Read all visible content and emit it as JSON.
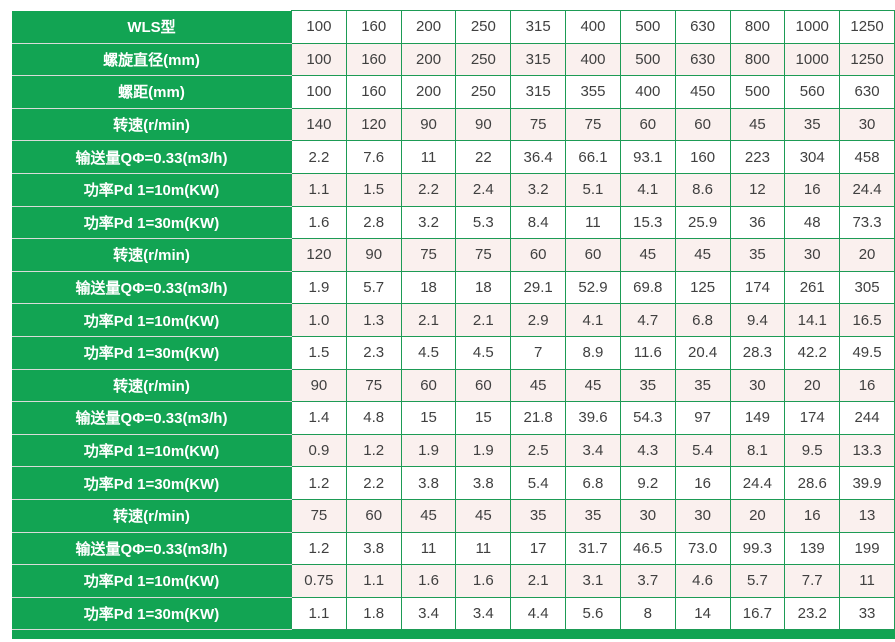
{
  "colors": {
    "label_green": "#12a453",
    "border_green": "#1d9b55",
    "stripe_pink": "#faf0ee",
    "data_text": "#404040",
    "label_text": "#ffffff"
  },
  "table": {
    "column_count": 12,
    "rows": [
      {
        "label": "WLS型",
        "values": [
          "100",
          "160",
          "200",
          "250",
          "315",
          "400",
          "500",
          "630",
          "800",
          "1000",
          "1250"
        ]
      },
      {
        "label": "螺旋直径(mm)",
        "values": [
          "100",
          "160",
          "200",
          "250",
          "315",
          "400",
          "500",
          "630",
          "800",
          "1000",
          "1250"
        ]
      },
      {
        "label": "螺距(mm)",
        "values": [
          "100",
          "160",
          "200",
          "250",
          "315",
          "355",
          "400",
          "450",
          "500",
          "560",
          "630"
        ]
      },
      {
        "label": "转速(r/min)",
        "values": [
          "140",
          "120",
          "90",
          "90",
          "75",
          "75",
          "60",
          "60",
          "45",
          "35",
          "30"
        ]
      },
      {
        "label": "输送量QΦ=0.33(m3/h)",
        "values": [
          "2.2",
          "7.6",
          "11",
          "22",
          "36.4",
          "66.1",
          "93.1",
          "160",
          "223",
          "304",
          "458"
        ]
      },
      {
        "label": "功率Pd 1=10m(KW)",
        "values": [
          "1.1",
          "1.5",
          "2.2",
          "2.4",
          "3.2",
          "5.1",
          "4.1",
          "8.6",
          "12",
          "16",
          "24.4"
        ]
      },
      {
        "label": "功率Pd 1=30m(KW)",
        "values": [
          "1.6",
          "2.8",
          "3.2",
          "5.3",
          "8.4",
          "11",
          "15.3",
          "25.9",
          "36",
          "48",
          "73.3"
        ]
      },
      {
        "label": "转速(r/min)",
        "values": [
          "120",
          "90",
          "75",
          "75",
          "60",
          "60",
          "45",
          "45",
          "35",
          "30",
          "20"
        ]
      },
      {
        "label": "输送量QΦ=0.33(m3/h)",
        "values": [
          "1.9",
          "5.7",
          "18",
          "18",
          "29.1",
          "52.9",
          "69.8",
          "125",
          "174",
          "261",
          "305"
        ]
      },
      {
        "label": "功率Pd 1=10m(KW)",
        "values": [
          "1.0",
          "1.3",
          "2.1",
          "2.1",
          "2.9",
          "4.1",
          "4.7",
          "6.8",
          "9.4",
          "14.1",
          "16.5"
        ]
      },
      {
        "label": "功率Pd 1=30m(KW)",
        "values": [
          "1.5",
          "2.3",
          "4.5",
          "4.5",
          "7",
          "8.9",
          "11.6",
          "20.4",
          "28.3",
          "42.2",
          "49.5"
        ]
      },
      {
        "label": "转速(r/min)",
        "values": [
          "90",
          "75",
          "60",
          "60",
          "45",
          "45",
          "35",
          "35",
          "30",
          "20",
          "16"
        ]
      },
      {
        "label": "输送量QΦ=0.33(m3/h)",
        "values": [
          "1.4",
          "4.8",
          "15",
          "15",
          "21.8",
          "39.6",
          "54.3",
          "97",
          "149",
          "174",
          "244"
        ]
      },
      {
        "label": "功率Pd 1=10m(KW)",
        "values": [
          "0.9",
          "1.2",
          "1.9",
          "1.9",
          "2.5",
          "3.4",
          "4.3",
          "5.4",
          "8.1",
          "9.5",
          "13.3"
        ]
      },
      {
        "label": "功率Pd 1=30m(KW)",
        "values": [
          "1.2",
          "2.2",
          "3.8",
          "3.8",
          "5.4",
          "6.8",
          "9.2",
          "16",
          "24.4",
          "28.6",
          "39.9"
        ]
      },
      {
        "label": "转速(r/min)",
        "values": [
          "75",
          "60",
          "45",
          "45",
          "35",
          "35",
          "30",
          "30",
          "20",
          "16",
          "13"
        ]
      },
      {
        "label": "输送量QΦ=0.33(m3/h)",
        "values": [
          "1.2",
          "3.8",
          "11",
          "11",
          "17",
          "31.7",
          "46.5",
          "73.0",
          "99.3",
          "139",
          "199"
        ]
      },
      {
        "label": "功率Pd 1=10m(KW)",
        "values": [
          "0.75",
          "1.1",
          "1.6",
          "1.6",
          "2.1",
          "3.1",
          "3.7",
          "4.6",
          "5.7",
          "7.7",
          "11"
        ]
      },
      {
        "label": "功率Pd 1=30m(KW)",
        "values": [
          "1.1",
          "1.8",
          "3.4",
          "3.4",
          "4.4",
          "5.6",
          "8",
          "14",
          "16.7",
          "23.2",
          "33"
        ]
      }
    ]
  }
}
